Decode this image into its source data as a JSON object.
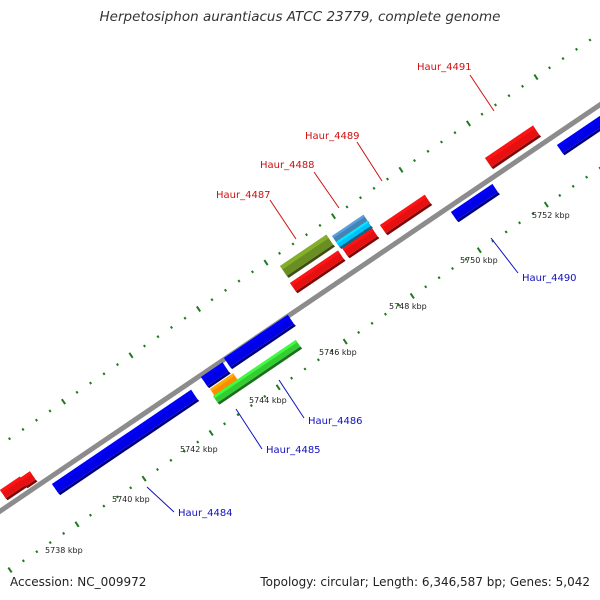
{
  "title": "Herpetosiphon aurantiacus ATCC 23779, complete genome",
  "footer": {
    "accession": "Accession: NC_009972",
    "summary": "Topology: circular; Length: 6,346,587 bp; Genes: 5,042"
  },
  "colors": {
    "backbone": "#8c8c8c",
    "tick": "#1f7a1f",
    "forward_label": "#d01010",
    "reverse_label": "#1010c0",
    "leader_forward": "#d01010",
    "leader_reverse": "#1010c0"
  },
  "ticks": {
    "labels": [
      "5738 kbp",
      "5740 kbp",
      "5742 kbp",
      "5744 kbp",
      "5746 kbp",
      "5748 kbp",
      "5750 kbp",
      "5752 kbp"
    ]
  },
  "genes": [
    {
      "label": "Haur_4484",
      "color": "#0000e6",
      "strand": "reverse"
    },
    {
      "label": "Haur_4485",
      "color": "#ff8c00",
      "strand": "reverse"
    },
    {
      "label": "Haur_4486",
      "color": "#33cc33",
      "strand": "reverse"
    },
    {
      "label": "Haur_4487",
      "color": "#6b8e23",
      "strand": "forward"
    },
    {
      "label": "Haur_4488",
      "color": "#4682b4",
      "strand": "forward"
    },
    {
      "label": "Haur_4489",
      "color": "#00bfff",
      "strand": "forward"
    },
    {
      "label": "Haur_4490",
      "color": "#0000e6",
      "strand": "reverse"
    },
    {
      "label": "Haur_4491",
      "color": "#e61010",
      "strand": "forward"
    }
  ],
  "unlabeled_feature_colors": {
    "forward": "#e61010",
    "reverse": "#0000e6"
  }
}
